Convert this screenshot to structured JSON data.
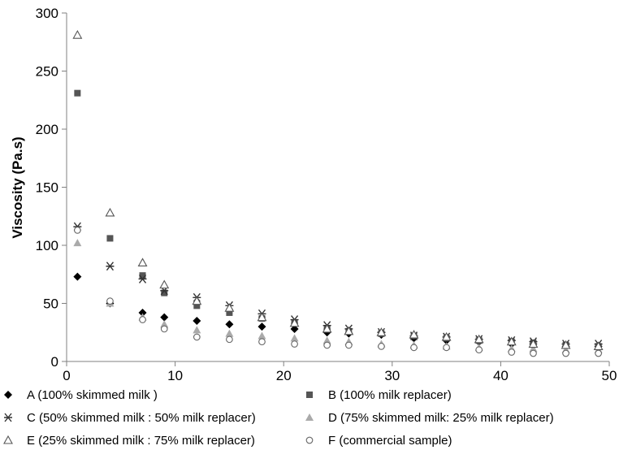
{
  "chart_data": {
    "type": "scatter",
    "title": "",
    "xlabel": "",
    "ylabel": "Viscosity (Pa.s)",
    "xlim": [
      0,
      50
    ],
    "ylim": [
      0,
      300
    ],
    "x_ticks": [
      "0",
      "10",
      "20",
      "30",
      "40",
      "50"
    ],
    "y_ticks": [
      "0",
      "50",
      "100",
      "150",
      "200",
      "250",
      "300"
    ],
    "grid": false,
    "legend_position": "bottom",
    "series": [
      {
        "name": "A (100% skimmed milk )",
        "marker": "diamond",
        "color": "#000000",
        "x": [
          1,
          4,
          7,
          9,
          12,
          15,
          18,
          21,
          24,
          26,
          29,
          32,
          35,
          38,
          41,
          43,
          46,
          49
        ],
        "y": [
          73,
          50,
          42,
          38,
          35,
          32,
          30,
          28,
          25,
          24,
          23,
          20,
          18,
          17,
          15,
          15,
          13,
          13
        ]
      },
      {
        "name": "B (100% milk replacer)",
        "marker": "square",
        "color": "#555555",
        "x": [
          1,
          4,
          7,
          9,
          12,
          15,
          18,
          21,
          24,
          26,
          29,
          32,
          35,
          38,
          41,
          43,
          46,
          49
        ],
        "y": [
          231,
          106,
          74,
          59,
          48,
          42,
          37,
          33,
          28,
          26,
          24,
          22,
          20,
          18,
          17,
          16,
          14,
          13
        ]
      },
      {
        "name": "C (50% skimmed milk : 50% milk replacer)",
        "marker": "asterisk",
        "color": "#333333",
        "x": [
          1,
          4,
          7,
          9,
          12,
          15,
          18,
          21,
          24,
          26,
          29,
          32,
          35,
          38,
          41,
          43,
          46,
          49
        ],
        "y": [
          116,
          82,
          71,
          61,
          55,
          48,
          41,
          36,
          31,
          28,
          25,
          22,
          21,
          19,
          18,
          17,
          15,
          15
        ]
      },
      {
        "name": "D (75% skimmed milk: 25% milk replacer)",
        "marker": "triangle-filled",
        "color": "#aaaaaa",
        "x": [
          1,
          4,
          7,
          9,
          12,
          15,
          18,
          21,
          24,
          26,
          29,
          32,
          35,
          38,
          41,
          43,
          46,
          49
        ],
        "y": [
          102,
          50,
          38,
          32,
          27,
          24,
          22,
          20,
          18,
          17,
          15,
          14,
          13,
          12,
          11,
          11,
          10,
          10
        ]
      },
      {
        "name": "E (25% skimmed milk : 75% milk replacer)",
        "marker": "triangle-open",
        "color": "#555555",
        "x": [
          1,
          4,
          7,
          9,
          12,
          15,
          18,
          21,
          24,
          26,
          29,
          32,
          35,
          38,
          41,
          43,
          46,
          49
        ],
        "y": [
          281,
          128,
          85,
          66,
          52,
          46,
          38,
          33,
          28,
          26,
          25,
          23,
          21,
          19,
          17,
          15,
          14,
          13
        ]
      },
      {
        "name": "F (commercial sample)",
        "marker": "circle-open",
        "color": "#666666",
        "x": [
          1,
          4,
          7,
          9,
          12,
          15,
          18,
          21,
          24,
          26,
          29,
          32,
          35,
          38,
          41,
          43,
          46,
          49
        ],
        "y": [
          113,
          52,
          36,
          28,
          21,
          19,
          17,
          15,
          14,
          14,
          13,
          12,
          12,
          10,
          8,
          7,
          7,
          7
        ]
      }
    ]
  }
}
